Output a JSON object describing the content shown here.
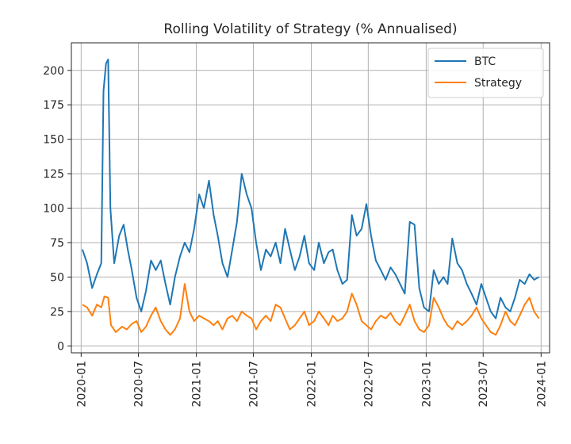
{
  "chart_data": {
    "type": "line",
    "title": "Rolling Volatility of Strategy (% Annualised)",
    "xlabel": "",
    "ylabel": "",
    "xlim": [
      "2019-12-01",
      "2024-01-28"
    ],
    "ylim": [
      -5,
      220
    ],
    "grid": true,
    "legend_position": "top-right",
    "x_tick_labels": [
      "2020-01",
      "2020-07",
      "2021-01",
      "2021-07",
      "2022-01",
      "2022-07",
      "2023-01",
      "2023-07",
      "2024-01"
    ],
    "y_ticks": [
      0,
      25,
      50,
      75,
      100,
      125,
      150,
      175,
      200
    ],
    "colors": {
      "BTC": "#1f77b4",
      "Strategy": "#ff7f0e"
    },
    "series": [
      {
        "name": "BTC",
        "points": [
          [
            "2020-01-05",
            70
          ],
          [
            "2020-01-20",
            60
          ],
          [
            "2020-02-05",
            42
          ],
          [
            "2020-02-20",
            52
          ],
          [
            "2020-03-05",
            60
          ],
          [
            "2020-03-12",
            185
          ],
          [
            "2020-03-20",
            205
          ],
          [
            "2020-03-27",
            208
          ],
          [
            "2020-04-03",
            100
          ],
          [
            "2020-04-15",
            60
          ],
          [
            "2020-05-01",
            80
          ],
          [
            "2020-05-15",
            88
          ],
          [
            "2020-05-28",
            70
          ],
          [
            "2020-06-10",
            55
          ],
          [
            "2020-06-25",
            35
          ],
          [
            "2020-07-10",
            25
          ],
          [
            "2020-07-25",
            40
          ],
          [
            "2020-08-10",
            62
          ],
          [
            "2020-08-25",
            55
          ],
          [
            "2020-09-10",
            62
          ],
          [
            "2020-09-25",
            45
          ],
          [
            "2020-10-10",
            30
          ],
          [
            "2020-10-25",
            50
          ],
          [
            "2020-11-10",
            65
          ],
          [
            "2020-11-25",
            75
          ],
          [
            "2020-12-10",
            68
          ],
          [
            "2020-12-25",
            85
          ],
          [
            "2021-01-10",
            110
          ],
          [
            "2021-01-25",
            100
          ],
          [
            "2021-02-10",
            120
          ],
          [
            "2021-02-25",
            95
          ],
          [
            "2021-03-10",
            80
          ],
          [
            "2021-03-25",
            60
          ],
          [
            "2021-04-10",
            50
          ],
          [
            "2021-04-25",
            70
          ],
          [
            "2021-05-10",
            90
          ],
          [
            "2021-05-25",
            125
          ],
          [
            "2021-06-10",
            110
          ],
          [
            "2021-06-25",
            100
          ],
          [
            "2021-07-10",
            75
          ],
          [
            "2021-07-25",
            55
          ],
          [
            "2021-08-10",
            70
          ],
          [
            "2021-08-25",
            65
          ],
          [
            "2021-09-10",
            75
          ],
          [
            "2021-09-25",
            60
          ],
          [
            "2021-10-10",
            85
          ],
          [
            "2021-10-25",
            70
          ],
          [
            "2021-11-10",
            55
          ],
          [
            "2021-11-25",
            65
          ],
          [
            "2021-12-10",
            80
          ],
          [
            "2021-12-25",
            60
          ],
          [
            "2022-01-10",
            55
          ],
          [
            "2022-01-25",
            75
          ],
          [
            "2022-02-10",
            60
          ],
          [
            "2022-02-25",
            68
          ],
          [
            "2022-03-10",
            70
          ],
          [
            "2022-03-25",
            55
          ],
          [
            "2022-04-10",
            45
          ],
          [
            "2022-04-25",
            48
          ],
          [
            "2022-05-10",
            95
          ],
          [
            "2022-05-25",
            80
          ],
          [
            "2022-06-10",
            85
          ],
          [
            "2022-06-25",
            103
          ],
          [
            "2022-07-10",
            80
          ],
          [
            "2022-07-25",
            62
          ],
          [
            "2022-08-10",
            55
          ],
          [
            "2022-08-25",
            48
          ],
          [
            "2022-09-10",
            57
          ],
          [
            "2022-09-25",
            52
          ],
          [
            "2022-10-10",
            45
          ],
          [
            "2022-10-25",
            38
          ],
          [
            "2022-11-10",
            90
          ],
          [
            "2022-11-25",
            88
          ],
          [
            "2022-12-10",
            42
          ],
          [
            "2022-12-25",
            28
          ],
          [
            "2023-01-10",
            25
          ],
          [
            "2023-01-25",
            55
          ],
          [
            "2023-02-10",
            45
          ],
          [
            "2023-02-25",
            50
          ],
          [
            "2023-03-10",
            45
          ],
          [
            "2023-03-25",
            78
          ],
          [
            "2023-04-10",
            60
          ],
          [
            "2023-04-25",
            55
          ],
          [
            "2023-05-10",
            45
          ],
          [
            "2023-05-25",
            38
          ],
          [
            "2023-06-10",
            30
          ],
          [
            "2023-06-25",
            45
          ],
          [
            "2023-07-10",
            35
          ],
          [
            "2023-07-25",
            25
          ],
          [
            "2023-08-10",
            20
          ],
          [
            "2023-08-25",
            35
          ],
          [
            "2023-09-10",
            28
          ],
          [
            "2023-09-25",
            25
          ],
          [
            "2023-10-10",
            35
          ],
          [
            "2023-10-25",
            48
          ],
          [
            "2023-11-10",
            45
          ],
          [
            "2023-11-25",
            52
          ],
          [
            "2023-12-10",
            48
          ],
          [
            "2023-12-25",
            50
          ]
        ]
      },
      {
        "name": "Strategy",
        "points": [
          [
            "2020-01-05",
            30
          ],
          [
            "2020-01-20",
            28
          ],
          [
            "2020-02-05",
            22
          ],
          [
            "2020-02-20",
            30
          ],
          [
            "2020-03-05",
            28
          ],
          [
            "2020-03-15",
            36
          ],
          [
            "2020-03-27",
            35
          ],
          [
            "2020-04-05",
            15
          ],
          [
            "2020-04-20",
            10
          ],
          [
            "2020-05-10",
            14
          ],
          [
            "2020-05-25",
            12
          ],
          [
            "2020-06-10",
            16
          ],
          [
            "2020-06-25",
            18
          ],
          [
            "2020-07-10",
            10
          ],
          [
            "2020-07-25",
            14
          ],
          [
            "2020-08-10",
            22
          ],
          [
            "2020-08-25",
            28
          ],
          [
            "2020-09-10",
            18
          ],
          [
            "2020-09-25",
            12
          ],
          [
            "2020-10-10",
            8
          ],
          [
            "2020-10-25",
            12
          ],
          [
            "2020-11-10",
            20
          ],
          [
            "2020-11-25",
            45
          ],
          [
            "2020-12-10",
            25
          ],
          [
            "2020-12-25",
            18
          ],
          [
            "2021-01-10",
            22
          ],
          [
            "2021-01-25",
            20
          ],
          [
            "2021-02-10",
            18
          ],
          [
            "2021-02-25",
            15
          ],
          [
            "2021-03-10",
            18
          ],
          [
            "2021-03-25",
            12
          ],
          [
            "2021-04-10",
            20
          ],
          [
            "2021-04-25",
            22
          ],
          [
            "2021-05-10",
            18
          ],
          [
            "2021-05-25",
            25
          ],
          [
            "2021-06-10",
            22
          ],
          [
            "2021-06-25",
            20
          ],
          [
            "2021-07-10",
            12
          ],
          [
            "2021-07-25",
            18
          ],
          [
            "2021-08-10",
            22
          ],
          [
            "2021-08-25",
            18
          ],
          [
            "2021-09-10",
            30
          ],
          [
            "2021-09-25",
            28
          ],
          [
            "2021-10-10",
            20
          ],
          [
            "2021-10-25",
            12
          ],
          [
            "2021-11-10",
            15
          ],
          [
            "2021-11-25",
            20
          ],
          [
            "2021-12-10",
            25
          ],
          [
            "2021-12-25",
            15
          ],
          [
            "2022-01-10",
            18
          ],
          [
            "2022-01-25",
            25
          ],
          [
            "2022-02-10",
            20
          ],
          [
            "2022-02-25",
            15
          ],
          [
            "2022-03-10",
            22
          ],
          [
            "2022-03-25",
            18
          ],
          [
            "2022-04-10",
            20
          ],
          [
            "2022-04-25",
            25
          ],
          [
            "2022-05-10",
            38
          ],
          [
            "2022-05-25",
            30
          ],
          [
            "2022-06-10",
            18
          ],
          [
            "2022-06-25",
            15
          ],
          [
            "2022-07-10",
            12
          ],
          [
            "2022-07-25",
            18
          ],
          [
            "2022-08-10",
            22
          ],
          [
            "2022-08-25",
            20
          ],
          [
            "2022-09-10",
            24
          ],
          [
            "2022-09-25",
            18
          ],
          [
            "2022-10-10",
            15
          ],
          [
            "2022-10-25",
            22
          ],
          [
            "2022-11-10",
            30
          ],
          [
            "2022-11-25",
            18
          ],
          [
            "2022-12-10",
            12
          ],
          [
            "2022-12-25",
            10
          ],
          [
            "2023-01-10",
            15
          ],
          [
            "2023-01-25",
            35
          ],
          [
            "2023-02-10",
            28
          ],
          [
            "2023-02-25",
            20
          ],
          [
            "2023-03-10",
            15
          ],
          [
            "2023-03-25",
            12
          ],
          [
            "2023-04-10",
            18
          ],
          [
            "2023-04-25",
            15
          ],
          [
            "2023-05-10",
            18
          ],
          [
            "2023-05-25",
            22
          ],
          [
            "2023-06-10",
            28
          ],
          [
            "2023-06-25",
            20
          ],
          [
            "2023-07-10",
            15
          ],
          [
            "2023-07-25",
            10
          ],
          [
            "2023-08-10",
            8
          ],
          [
            "2023-08-25",
            15
          ],
          [
            "2023-09-10",
            25
          ],
          [
            "2023-09-25",
            18
          ],
          [
            "2023-10-10",
            15
          ],
          [
            "2023-10-25",
            22
          ],
          [
            "2023-11-10",
            30
          ],
          [
            "2023-11-25",
            35
          ],
          [
            "2023-12-10",
            25
          ],
          [
            "2023-12-25",
            20
          ]
        ]
      }
    ]
  }
}
